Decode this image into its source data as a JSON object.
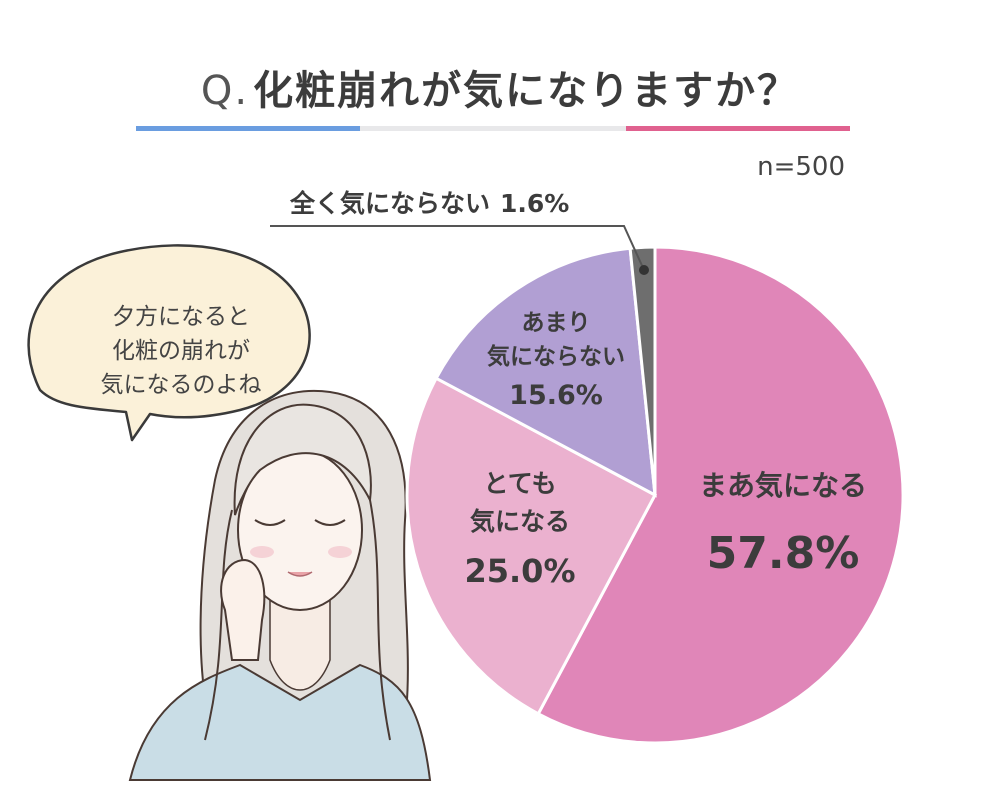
{
  "title": {
    "prefix": "Q.",
    "question": "化粧崩れが気になりますか？"
  },
  "sample_size": "n=500",
  "speech_bubble": {
    "lines": [
      "夕方になると",
      "化粧の崩れが",
      "気になるのよね"
    ]
  },
  "colors": {
    "accent_left": "#6a9de0",
    "accent_right": "#e0618f",
    "bubble_fill": "#fbf1d9"
  },
  "chart_data": {
    "type": "pie",
    "title": "",
    "start": "12 o'clock, clockwise",
    "slices": [
      {
        "label": "まあ気になる",
        "value": 57.8,
        "value_label": "57.8%",
        "color": "#e086b8"
      },
      {
        "label": "とても気になる",
        "label_lines": [
          "とても",
          "気になる"
        ],
        "value": 25.0,
        "value_label": "25.0%",
        "color": "#ebb1cf"
      },
      {
        "label": "あまり気にならない",
        "label_lines": [
          "あまり",
          "気にならない"
        ],
        "value": 15.6,
        "value_label": "15.6%",
        "color": "#b19fd3"
      },
      {
        "label": "全く気にならない",
        "value": 1.6,
        "value_label": "1.6%",
        "color": "#6e6e6e"
      }
    ]
  }
}
